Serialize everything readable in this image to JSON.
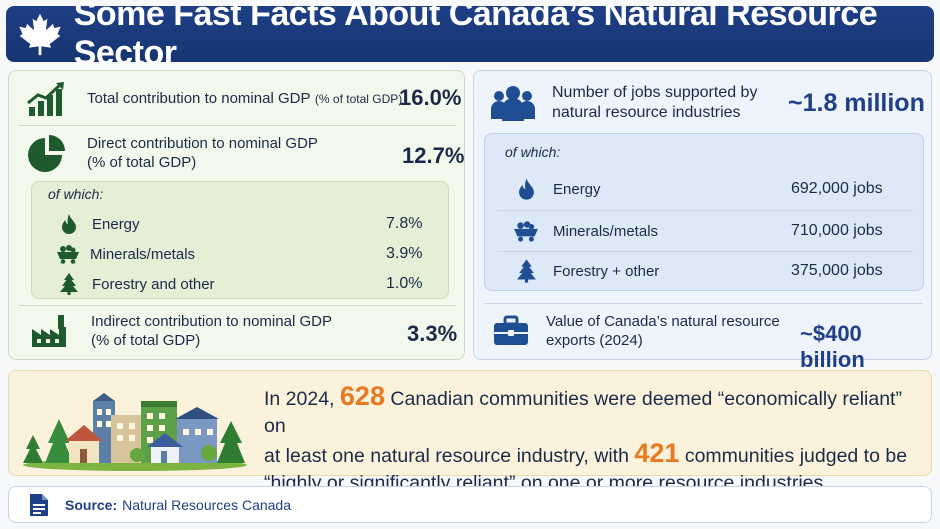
{
  "header": {
    "title": "Some Fast Facts About Canada’s Natural Resource Sector",
    "icon": "maple-leaf-icon"
  },
  "gdp": {
    "total": {
      "label": "Total contribution to nominal GDP",
      "unit": "(% of total GDP)",
      "value": "16.0%",
      "icon": "growth-chart-icon"
    },
    "direct": {
      "label_line1": "Direct contribution to nominal GDP",
      "label_line2": "(% of total GDP)",
      "value": "12.7%",
      "icon": "pie-chart-icon"
    },
    "of_which": "of which:",
    "breakdown": [
      {
        "label": "Energy",
        "value": "7.8%",
        "icon": "flame-icon"
      },
      {
        "label": "Minerals/metals",
        "value": "3.9%",
        "icon": "mine-cart-icon"
      },
      {
        "label": "Forestry and other",
        "value": "1.0%",
        "icon": "tree-icon"
      }
    ],
    "indirect": {
      "label_line1": "Indirect contribution to nominal GDP",
      "label_line2": "(% of total GDP)",
      "value": "3.3%",
      "icon": "factory-icon"
    }
  },
  "jobs": {
    "label_line1": "Number of jobs supported by",
    "label_line2": "natural resource industries",
    "value": "~1.8 million",
    "icon": "people-icon",
    "of_which": "of which:",
    "breakdown": [
      {
        "label": "Energy",
        "value": "692,000 jobs",
        "icon": "flame-icon"
      },
      {
        "label": "Minerals/metals",
        "value": "710,000 jobs",
        "icon": "mine-cart-icon"
      },
      {
        "label": "Forestry + other",
        "value": "375,000 jobs",
        "icon": "tree-icon"
      }
    ]
  },
  "exports": {
    "label_line1": "Value of Canada’s natural resource",
    "label_line2": "exports (2024)",
    "value": "~$400 billion",
    "icon": "briefcase-icon"
  },
  "communities": {
    "icon": "town-illustration-icon",
    "part1": "In 2024,",
    "num1": "628",
    "part2": "Canadian communities were deemed “economically reliant” on",
    "part3": "at least one natural resource industry, with",
    "num2": "421",
    "part4": "communities judged to be",
    "part5": "“highly or significantly reliant” on one or more resource industries."
  },
  "source": {
    "label": "Source:",
    "text": "Natural Resources Canada",
    "icon": "document-icon"
  },
  "colors": {
    "navy": "#1f3f86",
    "green": "#1e5a2c",
    "orange": "#e8791f",
    "blue_icon": "#1f4f92"
  }
}
